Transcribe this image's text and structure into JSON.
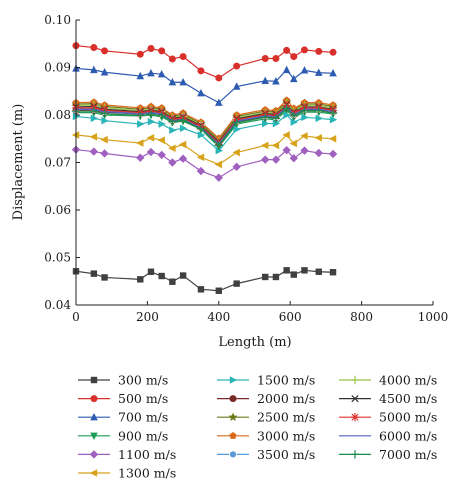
{
  "chart_data": {
    "type": "line",
    "title": "",
    "xlabel": "Length (m)",
    "ylabel": "Displacement (m)",
    "xlim": [
      0,
      1000
    ],
    "ylim": [
      0.04,
      0.1
    ],
    "xticks": [
      "0",
      "200",
      "400",
      "600",
      "800",
      "1000"
    ],
    "yticks": [
      "0.04",
      "0.05",
      "0.06",
      "0.07",
      "0.08",
      "0.09",
      "0.10"
    ],
    "grid": false,
    "legend_position": "bottom",
    "x": [
      0,
      50,
      80,
      180,
      210,
      240,
      270,
      300,
      350,
      400,
      450,
      530,
      560,
      590,
      610,
      640,
      680,
      720
    ],
    "series": [
      {
        "name": "300 m/s",
        "color": "#404040",
        "marker": "square",
        "values": [
          0.0471,
          0.0466,
          0.0458,
          0.0454,
          0.047,
          0.0461,
          0.0449,
          0.0462,
          0.0433,
          0.043,
          0.0445,
          0.0459,
          0.0459,
          0.0473,
          0.0464,
          0.0473,
          0.047,
          0.0469
        ]
      },
      {
        "name": "500 m/s",
        "color": "#d9302c",
        "marker": "circle",
        "values": [
          0.0946,
          0.0942,
          0.0935,
          0.0928,
          0.094,
          0.0935,
          0.0918,
          0.0923,
          0.0893,
          0.0878,
          0.0903,
          0.0919,
          0.0919,
          0.0936,
          0.0923,
          0.0937,
          0.0934,
          0.0932
        ]
      },
      {
        "name": "700 m/s",
        "color": "#2d5bb0",
        "marker": "triangle-up",
        "values": [
          0.0898,
          0.0895,
          0.089,
          0.0882,
          0.0888,
          0.0886,
          0.0869,
          0.0869,
          0.0846,
          0.0826,
          0.086,
          0.0872,
          0.0871,
          0.0895,
          0.0876,
          0.0894,
          0.0889,
          0.0888
        ]
      },
      {
        "name": "900 m/s",
        "color": "#1e9b55",
        "marker": "triangle-down",
        "values": [
          0.0805,
          0.0805,
          0.08,
          0.0798,
          0.08,
          0.0796,
          0.0784,
          0.0787,
          0.077,
          0.0733,
          0.0781,
          0.0792,
          0.079,
          0.081,
          0.0795,
          0.0806,
          0.0806,
          0.0802
        ]
      },
      {
        "name": "1100 m/s",
        "color": "#a060c0",
        "marker": "diamond",
        "values": [
          0.0727,
          0.0723,
          0.0719,
          0.071,
          0.0722,
          0.0716,
          0.07,
          0.0708,
          0.0682,
          0.0668,
          0.0691,
          0.0706,
          0.0706,
          0.0726,
          0.0709,
          0.0725,
          0.072,
          0.0718
        ]
      },
      {
        "name": "1300 m/s",
        "color": "#d8a21a",
        "marker": "triangle-left",
        "values": [
          0.0758,
          0.0754,
          0.0748,
          0.0741,
          0.0752,
          0.0747,
          0.073,
          0.0738,
          0.0711,
          0.0696,
          0.0721,
          0.0736,
          0.0736,
          0.0758,
          0.074,
          0.0756,
          0.0752,
          0.075
        ]
      },
      {
        "name": "1500 m/s",
        "color": "#2bb5b8",
        "marker": "triangle-right",
        "values": [
          0.0797,
          0.0793,
          0.0788,
          0.0781,
          0.0786,
          0.0781,
          0.0768,
          0.0772,
          0.0758,
          0.0725,
          0.077,
          0.0782,
          0.0782,
          0.08,
          0.0785,
          0.0795,
          0.0793,
          0.079
        ]
      },
      {
        "name": "2000 m/s",
        "color": "#7b2a2a",
        "marker": "circle",
        "values": [
          0.081,
          0.081,
          0.0806,
          0.0802,
          0.0806,
          0.0802,
          0.0789,
          0.0793,
          0.0775,
          0.074,
          0.0786,
          0.0797,
          0.0795,
          0.0815,
          0.08,
          0.0811,
          0.0811,
          0.0807
        ]
      },
      {
        "name": "2500 m/s",
        "color": "#6a7a1a",
        "marker": "star",
        "values": [
          0.0823,
          0.0824,
          0.0818,
          0.0812,
          0.0815,
          0.0812,
          0.0797,
          0.0801,
          0.0782,
          0.0748,
          0.0797,
          0.0808,
          0.0806,
          0.0828,
          0.0811,
          0.0823,
          0.0823,
          0.0818
        ]
      },
      {
        "name": "3000 m/s",
        "color": "#d96a1a",
        "marker": "pentagon",
        "values": [
          0.0826,
          0.0827,
          0.0821,
          0.0815,
          0.0818,
          0.0815,
          0.08,
          0.0804,
          0.0785,
          0.0751,
          0.08,
          0.0811,
          0.0809,
          0.0831,
          0.0814,
          0.0826,
          0.0826,
          0.0821
        ]
      },
      {
        "name": "3500 m/s",
        "color": "#5a9ad8",
        "marker": "circle-dot",
        "values": [
          0.0813,
          0.0813,
          0.0808,
          0.0804,
          0.0808,
          0.0804,
          0.0791,
          0.0795,
          0.0777,
          0.0742,
          0.0788,
          0.0799,
          0.0797,
          0.0818,
          0.0802,
          0.0813,
          0.0813,
          0.0809
        ]
      },
      {
        "name": "4000 m/s",
        "color": "#9cc44c",
        "marker": "plus",
        "values": [
          0.082,
          0.0821,
          0.0815,
          0.0809,
          0.0812,
          0.0809,
          0.0795,
          0.0798,
          0.078,
          0.0745,
          0.0794,
          0.0805,
          0.0803,
          0.0825,
          0.0808,
          0.082,
          0.082,
          0.0815
        ]
      },
      {
        "name": "4500 m/s",
        "color": "#333333",
        "marker": "x",
        "values": [
          0.0817,
          0.0818,
          0.0812,
          0.0807,
          0.081,
          0.0807,
          0.0793,
          0.0796,
          0.0778,
          0.0744,
          0.0792,
          0.0803,
          0.0801,
          0.0822,
          0.0806,
          0.0817,
          0.0817,
          0.0812
        ]
      },
      {
        "name": "5000 m/s",
        "color": "#e0302c",
        "marker": "asterisk",
        "values": [
          0.0815,
          0.0815,
          0.081,
          0.0805,
          0.0808,
          0.0805,
          0.0791,
          0.0794,
          0.0776,
          0.0742,
          0.079,
          0.0801,
          0.0799,
          0.082,
          0.0804,
          0.0815,
          0.0815,
          0.081
        ]
      },
      {
        "name": "6000 m/s",
        "color": "#5060c0",
        "marker": "none",
        "values": [
          0.0812,
          0.0812,
          0.0807,
          0.0802,
          0.0805,
          0.0802,
          0.0788,
          0.0791,
          0.0773,
          0.0739,
          0.0787,
          0.0798,
          0.0796,
          0.0817,
          0.0801,
          0.0812,
          0.0812,
          0.0807
        ]
      },
      {
        "name": "7000 m/s",
        "color": "#1e8a4a",
        "marker": "plus",
        "values": [
          0.0808,
          0.0808,
          0.0803,
          0.0799,
          0.0802,
          0.0799,
          0.0786,
          0.0789,
          0.0771,
          0.0736,
          0.0784,
          0.0795,
          0.0793,
          0.0814,
          0.0798,
          0.0809,
          0.0809,
          0.0804
        ]
      }
    ]
  }
}
